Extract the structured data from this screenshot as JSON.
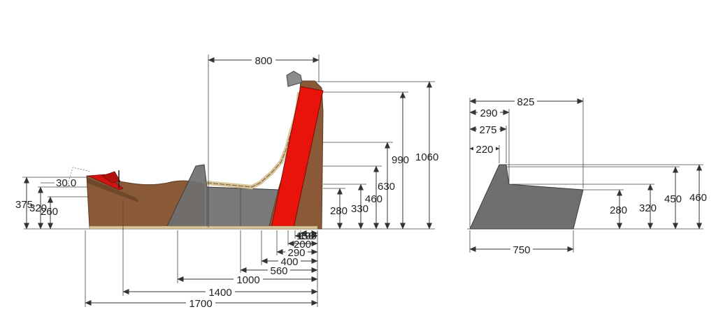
{
  "side_view": {
    "horizontal_dims": [
      "800",
      "1700",
      "1400",
      "1000",
      "560",
      "400",
      "290",
      "200",
      "150",
      "100"
    ],
    "vertical_dims": [
      "1060",
      "990",
      "630",
      "460",
      "330",
      "280",
      "375",
      "320",
      "260"
    ],
    "angle_label": "30.0"
  },
  "end_view": {
    "top_dims": [
      "825",
      "290",
      "275",
      "220"
    ],
    "bottom_dims": [
      "750"
    ],
    "vertical_dims": [
      "460",
      "450",
      "320",
      "280"
    ]
  },
  "colors": {
    "wood": "#8a5a38",
    "wood_dark": "#5e3a22",
    "grey_panel": "#6f6f6f",
    "red_panel": "#e8140c",
    "slat": "#d8c59a",
    "line": "#333333"
  },
  "icons": [
    "arrow-head-icon"
  ]
}
